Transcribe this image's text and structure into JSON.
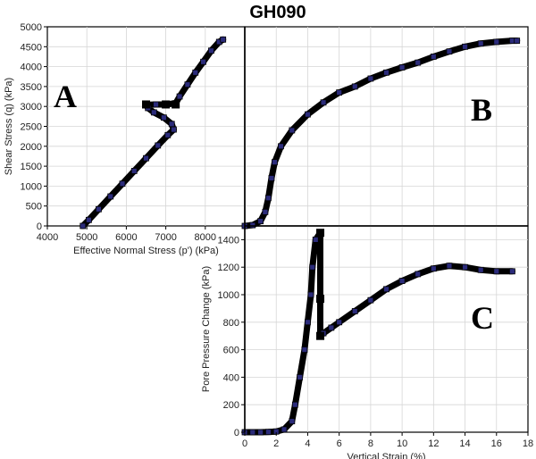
{
  "title": "GH090",
  "chart_data": [
    {
      "type": "scatter",
      "panel_letter": "A",
      "xlabel": "Effective Normal Stress (p') (kPa)",
      "ylabel": "Shear Stress (q) (kPa)",
      "xlim": [
        4000,
        9000
      ],
      "ylim": [
        0,
        5000
      ],
      "xticks": [
        4000,
        5000,
        6000,
        7000,
        8000
      ],
      "yticks": [
        0,
        500,
        1000,
        1500,
        2000,
        2500,
        3000,
        3500,
        4000,
        4500,
        5000
      ],
      "grid": true,
      "points": [
        [
          4900,
          0
        ],
        [
          5050,
          150
        ],
        [
          5300,
          420
        ],
        [
          5600,
          740
        ],
        [
          5900,
          1060
        ],
        [
          6200,
          1380
        ],
        [
          6500,
          1700
        ],
        [
          6800,
          2020
        ],
        [
          7050,
          2280
        ],
        [
          7200,
          2420
        ],
        [
          7150,
          2560
        ],
        [
          6950,
          2720
        ],
        [
          6700,
          2850
        ],
        [
          6550,
          2960
        ],
        [
          6500,
          3040
        ],
        [
          6750,
          3050
        ],
        [
          7000,
          3050
        ],
        [
          7250,
          3080
        ],
        [
          7350,
          3250
        ],
        [
          7550,
          3550
        ],
        [
          7750,
          3850
        ],
        [
          7950,
          4120
        ],
        [
          8150,
          4400
        ],
        [
          8350,
          4620
        ],
        [
          8450,
          4680
        ]
      ],
      "square_markers": [
        [
          6500,
          3050
        ],
        [
          7000,
          3050
        ],
        [
          7250,
          3050
        ]
      ]
    },
    {
      "type": "scatter",
      "panel_letter": "B",
      "xlabel": "",
      "ylabel": "",
      "xlim": [
        0,
        18
      ],
      "ylim": [
        0,
        5000
      ],
      "grid": true,
      "points": [
        [
          0,
          0
        ],
        [
          0.5,
          20
        ],
        [
          1.0,
          120
        ],
        [
          1.3,
          350
        ],
        [
          1.5,
          700
        ],
        [
          1.7,
          1200
        ],
        [
          1.9,
          1600
        ],
        [
          2.3,
          2000
        ],
        [
          3.0,
          2400
        ],
        [
          4.0,
          2800
        ],
        [
          5.0,
          3100
        ],
        [
          6.0,
          3350
        ],
        [
          7.0,
          3500
        ],
        [
          8.0,
          3700
        ],
        [
          9.0,
          3850
        ],
        [
          10.0,
          3980
        ],
        [
          11.0,
          4100
        ],
        [
          12.0,
          4250
        ],
        [
          13.0,
          4380
        ],
        [
          14.0,
          4500
        ],
        [
          15.0,
          4580
        ],
        [
          16.0,
          4620
        ],
        [
          17.0,
          4650
        ],
        [
          17.3,
          4650
        ]
      ]
    },
    {
      "type": "scatter",
      "panel_letter": "C",
      "xlabel": "Vertical Strain (%)",
      "ylabel": "Pore Pressure Change (kPa)",
      "xlim": [
        0,
        18
      ],
      "ylim": [
        0,
        1500
      ],
      "xticks": [
        0,
        2,
        4,
        6,
        8,
        10,
        12,
        14,
        16,
        18
      ],
      "yticks": [
        0,
        200,
        400,
        600,
        800,
        1000,
        1200,
        1400
      ],
      "grid": true,
      "points": [
        [
          0,
          0
        ],
        [
          0.5,
          0
        ],
        [
          1.0,
          0
        ],
        [
          1.5,
          2
        ],
        [
          2.0,
          5
        ],
        [
          2.5,
          20
        ],
        [
          3.0,
          80
        ],
        [
          3.2,
          200
        ],
        [
          3.5,
          400
        ],
        [
          3.8,
          600
        ],
        [
          4.0,
          800
        ],
        [
          4.2,
          1000
        ],
        [
          4.3,
          1200
        ],
        [
          4.5,
          1400
        ],
        [
          4.8,
          1450
        ],
        [
          4.8,
          700
        ],
        [
          5.0,
          720
        ],
        [
          5.5,
          760
        ],
        [
          6.0,
          800
        ],
        [
          7.0,
          880
        ],
        [
          8.0,
          960
        ],
        [
          9.0,
          1040
        ],
        [
          10.0,
          1100
        ],
        [
          11.0,
          1150
        ],
        [
          12.0,
          1190
        ],
        [
          13.0,
          1210
        ],
        [
          14.0,
          1200
        ],
        [
          15.0,
          1180
        ],
        [
          16.0,
          1170
        ],
        [
          17.0,
          1170
        ]
      ],
      "square_markers": [
        [
          4.8,
          1450
        ],
        [
          4.8,
          970
        ],
        [
          4.8,
          700
        ]
      ]
    }
  ],
  "style": {
    "marker_fill": "#2b2b7a",
    "marker_stroke": "#000000",
    "grid_color": "#d6d6d6"
  }
}
